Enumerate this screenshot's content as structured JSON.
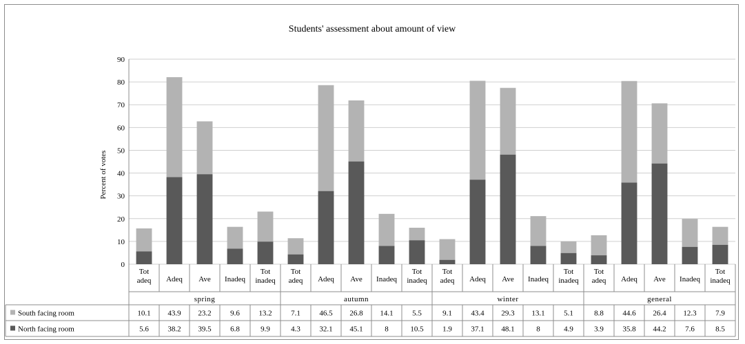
{
  "chart_data": {
    "type": "bar",
    "stacked": true,
    "title": "Students' assessment about amount of view",
    "ylabel": "Percent of votes",
    "ylim": [
      0,
      90
    ],
    "yticks": [
      "0",
      "10",
      "20",
      "30",
      "40",
      "50",
      "60",
      "70",
      "80",
      "90"
    ],
    "grid": true,
    "legend_placement": "data-table",
    "groups": [
      {
        "label": "spring",
        "categories": [
          {
            "line1": "Tot",
            "line2": "adeq"
          },
          {
            "line1": "Adeq",
            "line2": ""
          },
          {
            "line1": "Ave",
            "line2": ""
          },
          {
            "line1": "Inadeq",
            "line2": ""
          },
          {
            "line1": "Tot",
            "line2": "inadeq"
          }
        ]
      },
      {
        "label": "autumn",
        "categories": [
          {
            "line1": "Tot",
            "line2": "adeq"
          },
          {
            "line1": "Adeq",
            "line2": ""
          },
          {
            "line1": "Ave",
            "line2": ""
          },
          {
            "line1": "Inadeq",
            "line2": ""
          },
          {
            "line1": "Tot",
            "line2": "inadeq"
          }
        ]
      },
      {
        "label": "winter",
        "categories": [
          {
            "line1": "Tot",
            "line2": "adeq"
          },
          {
            "line1": "Adeq",
            "line2": ""
          },
          {
            "line1": "Ave",
            "line2": ""
          },
          {
            "line1": "Inadeq",
            "line2": ""
          },
          {
            "line1": "Tot",
            "line2": "inadeq"
          }
        ]
      },
      {
        "label": "general",
        "categories": [
          {
            "line1": "Tot",
            "line2": "adeq"
          },
          {
            "line1": "Adeq",
            "line2": ""
          },
          {
            "line1": "Ave",
            "line2": ""
          },
          {
            "line1": "Inadeq",
            "line2": ""
          },
          {
            "line1": "Tot",
            "line2": "inadeq"
          }
        ]
      }
    ],
    "series": [
      {
        "name": "South facing room",
        "color": "#b3b3b3",
        "values": [
          "10.1",
          "43.9",
          "23.2",
          "9.6",
          "13.2",
          "7.1",
          "46.5",
          "26.8",
          "14.1",
          "5.5",
          "9.1",
          "43.4",
          "29.3",
          "13.1",
          "5.1",
          "8.8",
          "44.6",
          "26.4",
          "12.3",
          "7.9"
        ]
      },
      {
        "name": "North facing room",
        "color": "#595959",
        "values": [
          "5.6",
          "38.2",
          "39.5",
          "6.8",
          "9.9",
          "4.3",
          "32.1",
          "45.1",
          "8",
          "10.5",
          "1.9",
          "37.1",
          "48.1",
          "8",
          "4.9",
          "3.9",
          "35.8",
          "44.2",
          "7.6",
          "8.5"
        ]
      }
    ],
    "stack_order_bottom_to_top": [
      "North facing room",
      "South facing room"
    ]
  }
}
